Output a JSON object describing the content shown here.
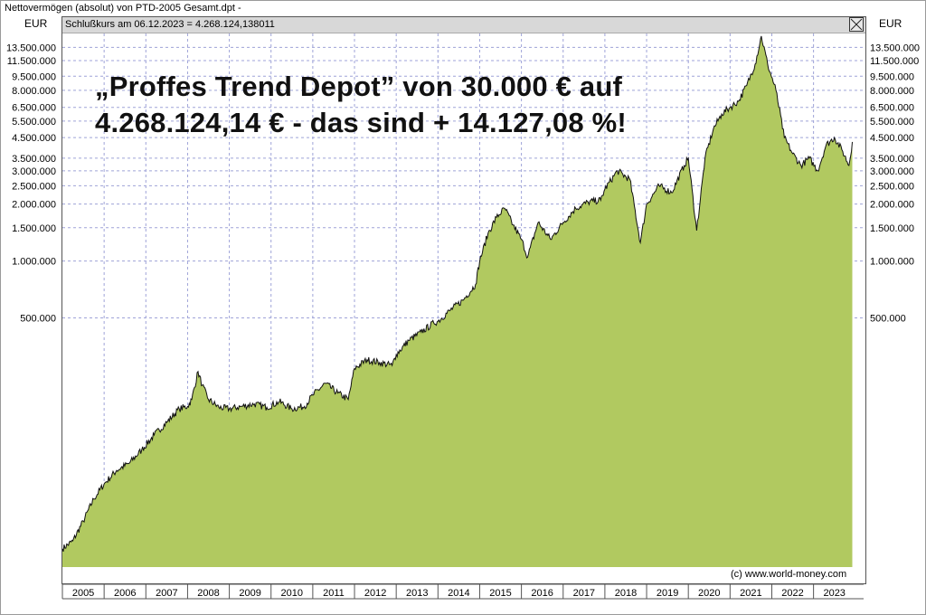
{
  "window": {
    "title": "Nettovermögen (absolut) von PTD-2005 Gesamt.dpt -",
    "info_bar": "Schlußkurs am 06.12.2023 = 4.268.124,138011",
    "close_icon": "close-x-icon"
  },
  "headline": {
    "line1": "„Proffes Trend Depot” von 30.000 € auf",
    "line2": "4.268.124,14 € - das sind + 14.127,08 %!"
  },
  "watermark": "(c) www.world-money.com",
  "colors": {
    "fill": "#b1c960",
    "line": "#111111",
    "grid": "#9fa3d8",
    "background": "#ffffff"
  },
  "chart_data": {
    "type": "area",
    "y_scale": "log",
    "y_unit": "EUR",
    "grid": true,
    "ylim": [
      24000,
      16000000
    ],
    "y_ticks": [
      {
        "value": 13500000,
        "label": "13.500.000"
      },
      {
        "value": 11500000,
        "label": "11.500.000"
      },
      {
        "value": 9500000,
        "label": "9.500.000"
      },
      {
        "value": 8000000,
        "label": "8.000.000"
      },
      {
        "value": 6500000,
        "label": "6.500.000"
      },
      {
        "value": 5500000,
        "label": "5.500.000"
      },
      {
        "value": 4500000,
        "label": "4.500.000"
      },
      {
        "value": 3500000,
        "label": "3.500.000"
      },
      {
        "value": 3000000,
        "label": "3.000.000"
      },
      {
        "value": 2500000,
        "label": "2.500.000"
      },
      {
        "value": 2000000,
        "label": "2.000.000"
      },
      {
        "value": 1500000,
        "label": "1.500.000"
      },
      {
        "value": 1000000,
        "label": "1.000.000"
      },
      {
        "value": 500000,
        "label": "500.000"
      }
    ],
    "x_years": [
      "2005",
      "2006",
      "2007",
      "2008",
      "2009",
      "2010",
      "2011",
      "2012",
      "2013",
      "2014",
      "2015",
      "2016",
      "2017",
      "2018",
      "2019",
      "2020",
      "2021",
      "2022",
      "2023"
    ],
    "xlim": [
      2005.0,
      2024.2
    ],
    "series": [
      {
        "values": [
          [
            2005.0,
            30000
          ],
          [
            2005.25,
            33000
          ],
          [
            2005.5,
            42000
          ],
          [
            2005.75,
            55000
          ],
          [
            2006.0,
            66000
          ],
          [
            2006.3,
            78000
          ],
          [
            2006.6,
            85000
          ],
          [
            2006.9,
            100000
          ],
          [
            2007.2,
            120000
          ],
          [
            2007.5,
            140000
          ],
          [
            2007.8,
            165000
          ],
          [
            2008.0,
            170000
          ],
          [
            2008.1,
            185000
          ],
          [
            2008.25,
            260000
          ],
          [
            2008.35,
            220000
          ],
          [
            2008.5,
            185000
          ],
          [
            2008.75,
            168000
          ],
          [
            2009.0,
            165000
          ],
          [
            2009.3,
            170000
          ],
          [
            2009.6,
            175000
          ],
          [
            2009.9,
            168000
          ],
          [
            2010.2,
            180000
          ],
          [
            2010.5,
            165000
          ],
          [
            2010.8,
            170000
          ],
          [
            2011.0,
            195000
          ],
          [
            2011.3,
            225000
          ],
          [
            2011.6,
            200000
          ],
          [
            2011.85,
            185000
          ],
          [
            2012.0,
            270000
          ],
          [
            2012.3,
            300000
          ],
          [
            2012.6,
            290000
          ],
          [
            2012.9,
            280000
          ],
          [
            2013.0,
            320000
          ],
          [
            2013.3,
            380000
          ],
          [
            2013.6,
            420000
          ],
          [
            2013.9,
            470000
          ],
          [
            2014.0,
            480000
          ],
          [
            2014.3,
            550000
          ],
          [
            2014.6,
            620000
          ],
          [
            2014.9,
            750000
          ],
          [
            2015.0,
            1000000
          ],
          [
            2015.2,
            1400000
          ],
          [
            2015.4,
            1700000
          ],
          [
            2015.6,
            1900000
          ],
          [
            2015.8,
            1550000
          ],
          [
            2016.0,
            1300000
          ],
          [
            2016.15,
            1050000
          ],
          [
            2016.4,
            1600000
          ],
          [
            2016.7,
            1300000
          ],
          [
            2017.0,
            1600000
          ],
          [
            2017.3,
            1900000
          ],
          [
            2017.6,
            2050000
          ],
          [
            2017.9,
            2100000
          ],
          [
            2018.0,
            2400000
          ],
          [
            2018.3,
            3000000
          ],
          [
            2018.6,
            2700000
          ],
          [
            2018.85,
            1250000
          ],
          [
            2019.0,
            2000000
          ],
          [
            2019.3,
            2500000
          ],
          [
            2019.6,
            2300000
          ],
          [
            2019.9,
            3200000
          ],
          [
            2020.0,
            3500000
          ],
          [
            2020.2,
            1450000
          ],
          [
            2020.4,
            3500000
          ],
          [
            2020.6,
            5000000
          ],
          [
            2020.8,
            6000000
          ],
          [
            2021.0,
            6500000
          ],
          [
            2021.2,
            7000000
          ],
          [
            2021.4,
            8500000
          ],
          [
            2021.6,
            11000000
          ],
          [
            2021.75,
            15500000
          ],
          [
            2021.9,
            11000000
          ],
          [
            2022.1,
            8000000
          ],
          [
            2022.3,
            4500000
          ],
          [
            2022.5,
            3700000
          ],
          [
            2022.7,
            3200000
          ],
          [
            2022.9,
            3500000
          ],
          [
            2023.1,
            3000000
          ],
          [
            2023.3,
            4100000
          ],
          [
            2023.5,
            4500000
          ],
          [
            2023.7,
            3800000
          ],
          [
            2023.85,
            3200000
          ],
          [
            2023.93,
            4268124
          ]
        ]
      }
    ]
  }
}
